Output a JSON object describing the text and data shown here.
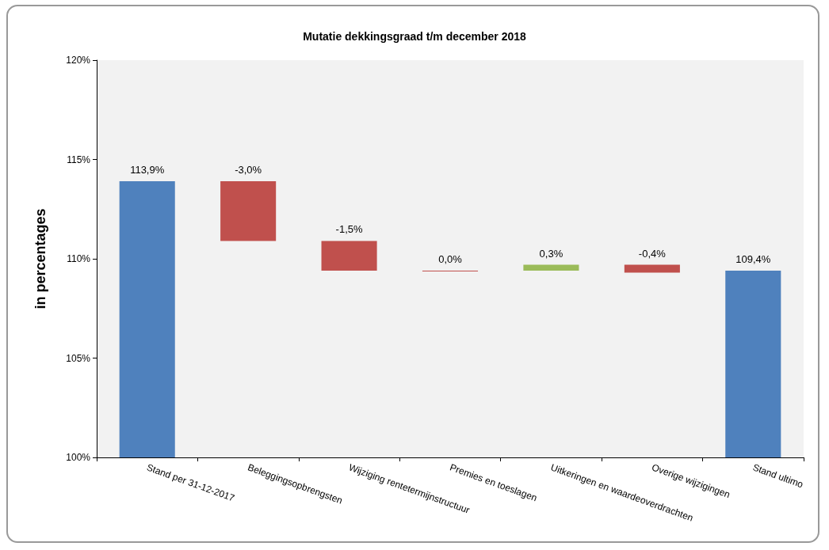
{
  "chart_data": {
    "type": "bar",
    "title": "Mutatie dekkingsgraad t/m december 2018",
    "ylabel": "in percentages",
    "categories": [
      "Stand per 31-12-2017",
      "Beleggingsopbrengsten",
      "Wijziging rentetermijnstructuur",
      "Premies en toeslagen",
      "Uitkeringen en waardeoverdrachten",
      "Overige wijzigingen",
      "Stand ultimo"
    ],
    "values": [
      113.9,
      -3.0,
      -1.5,
      0.0,
      0.3,
      -0.4,
      109.4
    ],
    "base": [
      null,
      113.9,
      110.9,
      109.4,
      109.4,
      109.7,
      null
    ],
    "colors": [
      "#4f81bd",
      "#c0504d",
      "#c0504d",
      "#c0504d",
      "#9bbb59",
      "#c0504d",
      "#4f81bd"
    ],
    "value_labels": [
      "113,9%",
      "-3,0%",
      "-1,5%",
      "0,0%",
      "0,3%",
      "-0,4%",
      "109,4%"
    ],
    "ylim": [
      100,
      120
    ],
    "yticks": [
      {
        "value": 100,
        "label": "100%"
      },
      {
        "value": 105,
        "label": "105%"
      },
      {
        "value": 110,
        "label": "110%"
      },
      {
        "value": 115,
        "label": "115%"
      },
      {
        "value": 120,
        "label": "120%"
      }
    ],
    "grid": false
  }
}
